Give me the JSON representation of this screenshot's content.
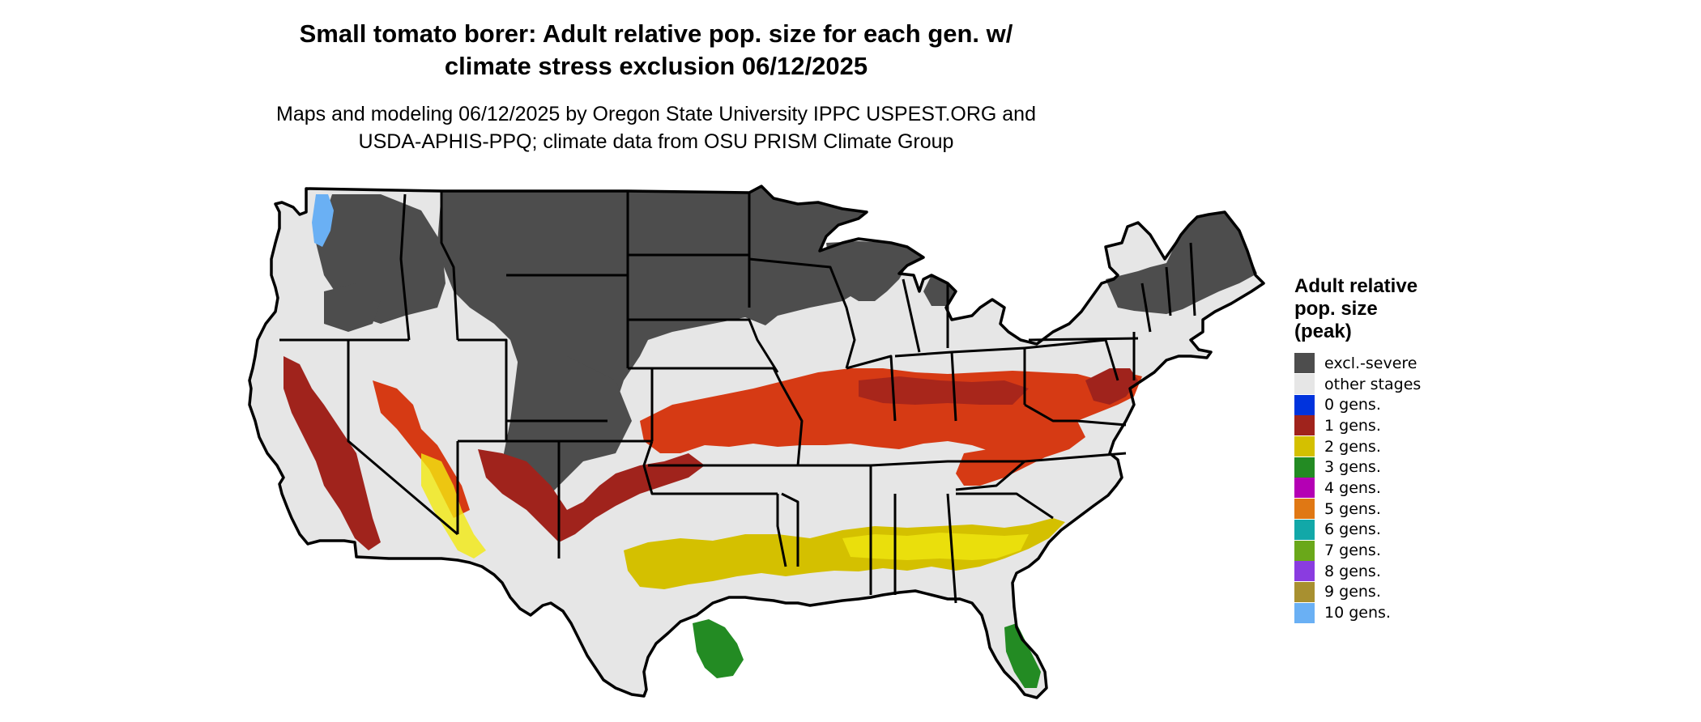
{
  "title_lines": [
    "Small tomato borer: Adult relative pop. size for each gen. w/",
    "climate stress exclusion 06/12/2025"
  ],
  "subtitle_lines": [
    "Maps and modeling 06/12/2025 by Oregon State University IPPC USPEST.ORG and",
    "USDA-APHIS-PPQ; climate data from OSU PRISM Climate Group"
  ],
  "legend": {
    "title_lines": [
      "Adult relative",
      "pop. size",
      "(peak)"
    ],
    "items": [
      {
        "label": "excl.-severe",
        "color": "#4d4d4d"
      },
      {
        "label": "other stages",
        "color": "#e6e6e6"
      },
      {
        "label": "0 gens.",
        "color": "#0033dd"
      },
      {
        "label": "1 gens.",
        "color": "#a0231c"
      },
      {
        "label": "2 gens.",
        "color": "#d4c000"
      },
      {
        "label": "3 gens.",
        "color": "#238b23"
      },
      {
        "label": "4 gens.",
        "color": "#b400b4"
      },
      {
        "label": "5 gens.",
        "color": "#e07814"
      },
      {
        "label": "6 gens.",
        "color": "#12a8a8"
      },
      {
        "label": "7 gens.",
        "color": "#6aa81a"
      },
      {
        "label": "8 gens.",
        "color": "#8a3ce0"
      },
      {
        "label": "9 gens.",
        "color": "#a89030"
      },
      {
        "label": "10 gens.",
        "color": "#6ab0f4"
      }
    ]
  },
  "map": {
    "colors": {
      "land": "#e6e6e6",
      "excluded": "#4d4d4d",
      "gen1_dark": "#a0231c",
      "gen1_bright": "#d63a14",
      "gen2": "#d4c000",
      "gen2_bright": "#f2ea10",
      "gen3": "#238b23",
      "gen10": "#6ab0f4",
      "border": "#000000"
    }
  }
}
